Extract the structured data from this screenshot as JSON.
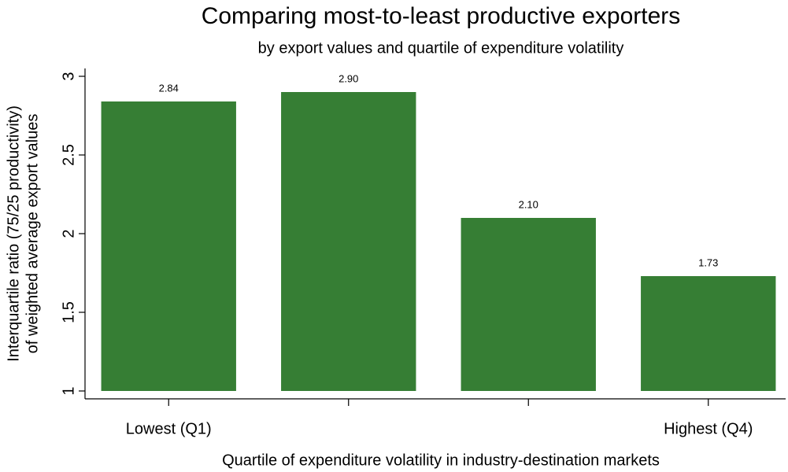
{
  "chart_data": {
    "type": "bar",
    "title": "Comparing most-to-least productive exporters",
    "subtitle": "by export values and quartile of expenditure volatility",
    "x_label": "Quartile of expenditure volatility in industry-destination markets",
    "y_label": [
      "Interquartile ratio (75/25 productivity)",
      "of weighted average export values"
    ],
    "categories": [
      "Lowest (Q1)",
      null,
      null,
      "Highest (Q4)"
    ],
    "values": [
      2.84,
      2.9,
      2.1,
      1.73
    ],
    "value_labels": [
      "2.84",
      "2.90",
      "2.10",
      "1.73"
    ],
    "color": "#367e34",
    "ylim": [
      0.95,
      3.05
    ],
    "yticks": [
      1,
      1.5,
      2,
      2.5,
      3
    ],
    "grid": false
  }
}
